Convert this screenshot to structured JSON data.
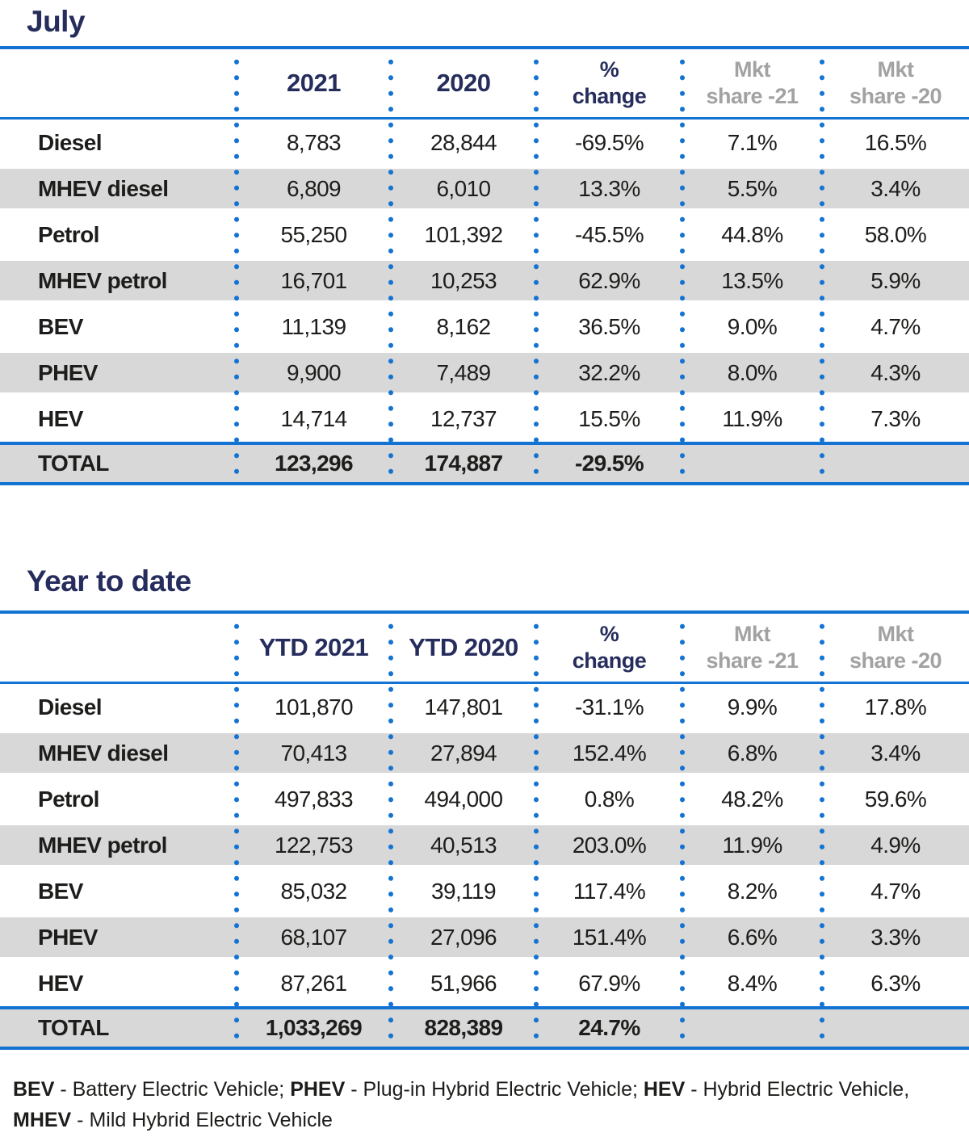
{
  "colors": {
    "accent_blue": "#1473d2",
    "navy": "#262d5d",
    "shaded_row": "#d8d8d8",
    "header_gray": "#a2a2a2",
    "text": "#1d1d1b"
  },
  "tables": [
    {
      "title": "July",
      "header": {
        "col1": "2021",
        "col2": "2020",
        "col3_line1": "%",
        "col3_line2": "change",
        "col4_line1": "Mkt",
        "col4_line2": "share -21",
        "col5_line1": "Mkt",
        "col5_line2": "share -20"
      },
      "rows": [
        {
          "label": "Diesel",
          "values": [
            "8,783",
            "28,844",
            "-69.5%",
            "7.1%",
            "16.5%"
          ]
        },
        {
          "label": "MHEV diesel",
          "values": [
            "6,809",
            "6,010",
            "13.3%",
            "5.5%",
            "3.4%"
          ]
        },
        {
          "label": "Petrol",
          "values": [
            "55,250",
            "101,392",
            "-45.5%",
            "44.8%",
            "58.0%"
          ]
        },
        {
          "label": "MHEV petrol",
          "values": [
            "16,701",
            "10,253",
            "62.9%",
            "13.5%",
            "5.9%"
          ]
        },
        {
          "label": "BEV",
          "values": [
            "11,139",
            "8,162",
            "36.5%",
            "9.0%",
            "4.7%"
          ]
        },
        {
          "label": "PHEV",
          "values": [
            "9,900",
            "7,489",
            "32.2%",
            "8.0%",
            "4.3%"
          ]
        },
        {
          "label": "HEV",
          "values": [
            "14,714",
            "12,737",
            "15.5%",
            "11.9%",
            "7.3%"
          ]
        }
      ],
      "total": {
        "label": "TOTAL",
        "values": [
          "123,296",
          "174,887",
          "-29.5%",
          "",
          ""
        ]
      }
    },
    {
      "title": "Year to date",
      "header": {
        "col1": "YTD 2021",
        "col2": "YTD 2020",
        "col3_line1": "%",
        "col3_line2": "change",
        "col4_line1": "Mkt",
        "col4_line2": "share -21",
        "col5_line1": "Mkt",
        "col5_line2": "share -20"
      },
      "rows": [
        {
          "label": "Diesel",
          "values": [
            "101,870",
            "147,801",
            "-31.1%",
            "9.9%",
            "17.8%"
          ]
        },
        {
          "label": "MHEV diesel",
          "values": [
            "70,413",
            "27,894",
            "152.4%",
            "6.8%",
            "3.4%"
          ]
        },
        {
          "label": "Petrol",
          "values": [
            "497,833",
            "494,000",
            "0.8%",
            "48.2%",
            "59.6%"
          ]
        },
        {
          "label": "MHEV petrol",
          "values": [
            "122,753",
            "40,513",
            "203.0%",
            "11.9%",
            "4.9%"
          ]
        },
        {
          "label": "BEV",
          "values": [
            "85,032",
            "39,119",
            "117.4%",
            "8.2%",
            "4.7%"
          ]
        },
        {
          "label": "PHEV",
          "values": [
            "68,107",
            "27,096",
            "151.4%",
            "6.6%",
            "3.3%"
          ]
        },
        {
          "label": "HEV",
          "values": [
            "87,261",
            "51,966",
            "67.9%",
            "8.4%",
            "6.3%"
          ]
        }
      ],
      "total": {
        "label": "TOTAL",
        "values": [
          "1,033,269",
          "828,389",
          "24.7%",
          "",
          ""
        ]
      }
    }
  ],
  "footnote": {
    "lines": [
      [
        {
          "text": "BEV",
          "bold": true
        },
        {
          "text": " - Battery Electric Vehicle; ",
          "bold": false
        },
        {
          "text": "PHEV",
          "bold": true
        },
        {
          "text": " - Plug-in Hybrid Electric Vehicle; ",
          "bold": false
        },
        {
          "text": "HEV",
          "bold": true
        },
        {
          "text": " - Hybrid Electric Vehicle,",
          "bold": false
        }
      ],
      [
        {
          "text": "MHEV",
          "bold": true
        },
        {
          "text": " - Mild Hybrid Electric Vehicle",
          "bold": false
        }
      ]
    ]
  }
}
